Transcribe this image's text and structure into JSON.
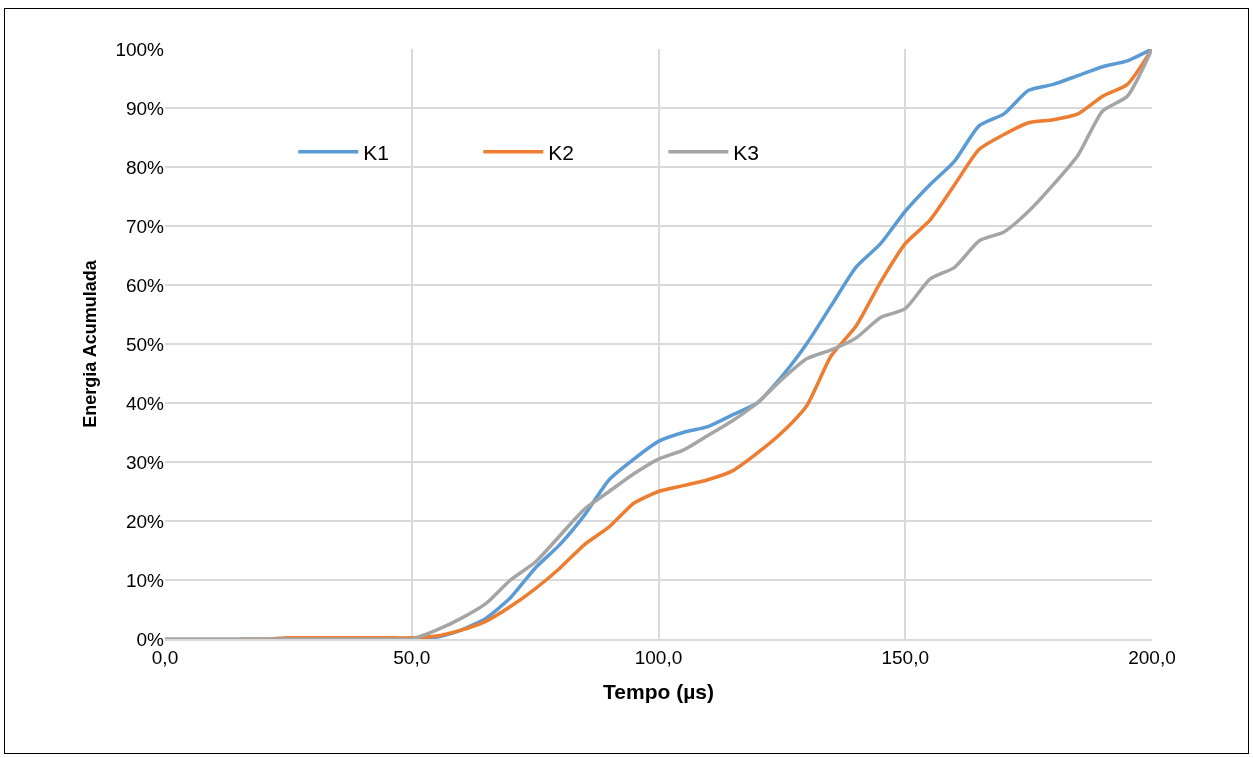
{
  "chart_data": {
    "type": "line",
    "xlabel": "Tempo (µs)",
    "ylabel": "Energia Acumulada",
    "x": [
      0,
      5,
      10,
      15,
      20,
      25,
      30,
      35,
      40,
      45,
      50,
      55,
      60,
      65,
      70,
      75,
      80,
      85,
      90,
      95,
      100,
      105,
      110,
      115,
      120,
      125,
      130,
      135,
      140,
      145,
      150,
      155,
      160,
      165,
      170,
      175,
      180,
      185,
      190,
      195,
      200
    ],
    "series": [
      {
        "name": "K1",
        "color": "#5b9bd5",
        "values": [
          null,
          null,
          null,
          null,
          null,
          null,
          null,
          null,
          null,
          null,
          0,
          0.3,
          1.5,
          3.5,
          7,
          12,
          16,
          21,
          27,
          30.5,
          33.5,
          35,
          36,
          38,
          40,
          44.5,
          50,
          56.5,
          63,
          67,
          72.5,
          77,
          81,
          87,
          89,
          93,
          94,
          95.5,
          97,
          98,
          100
        ]
      },
      {
        "name": "K2",
        "color": "#ed7d31",
        "values": [
          null,
          null,
          null,
          0,
          0,
          0.2,
          0.2,
          0.2,
          0.2,
          0.2,
          0.2,
          0.5,
          1.5,
          3,
          5.5,
          8.5,
          12,
          16,
          19,
          23,
          25,
          26,
          27,
          28.5,
          31.5,
          35,
          39.5,
          48,
          53,
          60.5,
          67,
          71,
          77,
          83,
          85.5,
          87.5,
          88,
          89,
          92,
          94,
          100
        ]
      },
      {
        "name": "K3",
        "color": "#a5a5a5",
        "values": [
          0,
          0,
          0,
          0,
          0,
          0,
          0,
          0,
          0,
          0,
          0,
          1.5,
          3.5,
          6,
          10,
          13,
          17.5,
          22,
          25,
          28,
          30.5,
          32,
          34.5,
          37,
          40,
          44,
          47.5,
          49,
          51,
          54.5,
          56,
          61,
          63,
          67.5,
          69,
          72.5,
          77,
          82,
          89.5,
          92,
          100
        ]
      }
    ],
    "xlim": [
      0,
      200
    ],
    "xticks": [
      {
        "value": 0,
        "label": "0,0"
      },
      {
        "value": 50,
        "label": "50,0"
      },
      {
        "value": 100,
        "label": "100,0"
      },
      {
        "value": 150,
        "label": "150,0"
      },
      {
        "value": 200,
        "label": "200,0"
      }
    ],
    "ylim": [
      0,
      100
    ],
    "yticks": [
      {
        "value": 0,
        "label": "0%"
      },
      {
        "value": 10,
        "label": "10%"
      },
      {
        "value": 20,
        "label": "20%"
      },
      {
        "value": 30,
        "label": "30%"
      },
      {
        "value": 40,
        "label": "40%"
      },
      {
        "value": 50,
        "label": "50%"
      },
      {
        "value": 60,
        "label": "60%"
      },
      {
        "value": 70,
        "label": "70%"
      },
      {
        "value": 80,
        "label": "80%"
      },
      {
        "value": 90,
        "label": "90%"
      },
      {
        "value": 100,
        "label": "100%"
      }
    ],
    "grid": true,
    "legend": "top left",
    "marker": "none",
    "line_style": "solid"
  }
}
